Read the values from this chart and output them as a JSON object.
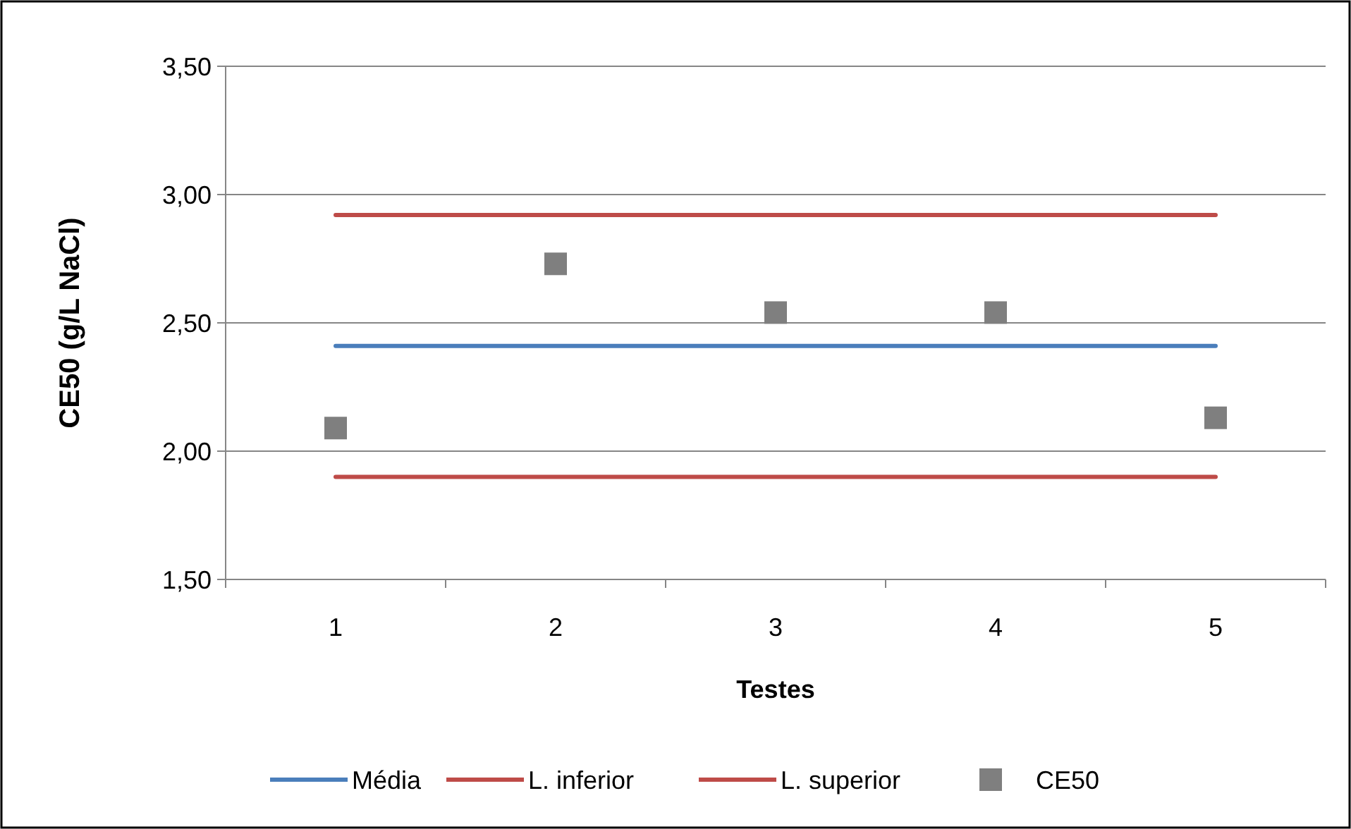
{
  "chart_data": {
    "type": "line",
    "xlabel": "Testes",
    "ylabel": "CE50 (g/L NaCl)",
    "categories": [
      "1",
      "2",
      "3",
      "4",
      "5"
    ],
    "ylim": [
      1.5,
      3.5
    ],
    "yticks": [
      {
        "value": 1.5,
        "label": "1,50"
      },
      {
        "value": 2,
        "label": "2,00"
      },
      {
        "value": 2.5,
        "label": "2,50"
      },
      {
        "value": 3,
        "label": "3,00"
      },
      {
        "value": 3.5,
        "label": "3,50"
      }
    ],
    "grid": "y",
    "legend": "bottom",
    "series": [
      {
        "name": "Média",
        "color": "#4a7ebb",
        "marker": "none",
        "values": [
          2.41,
          2.41,
          2.41,
          2.41,
          2.41
        ]
      },
      {
        "name": "L. inferior",
        "color": "#be4b48",
        "marker": "none",
        "values": [
          1.9,
          1.9,
          1.9,
          1.9,
          1.9
        ]
      },
      {
        "name": "L. superior",
        "color": "#be4b48",
        "marker": "none",
        "values": [
          2.92,
          2.92,
          2.92,
          2.92,
          2.92
        ]
      },
      {
        "name": "CE50",
        "type": "scatter",
        "color": "#7f7f7f",
        "marker": "square",
        "values": [
          2.09,
          2.73,
          2.54,
          2.54,
          2.13
        ]
      }
    ]
  }
}
